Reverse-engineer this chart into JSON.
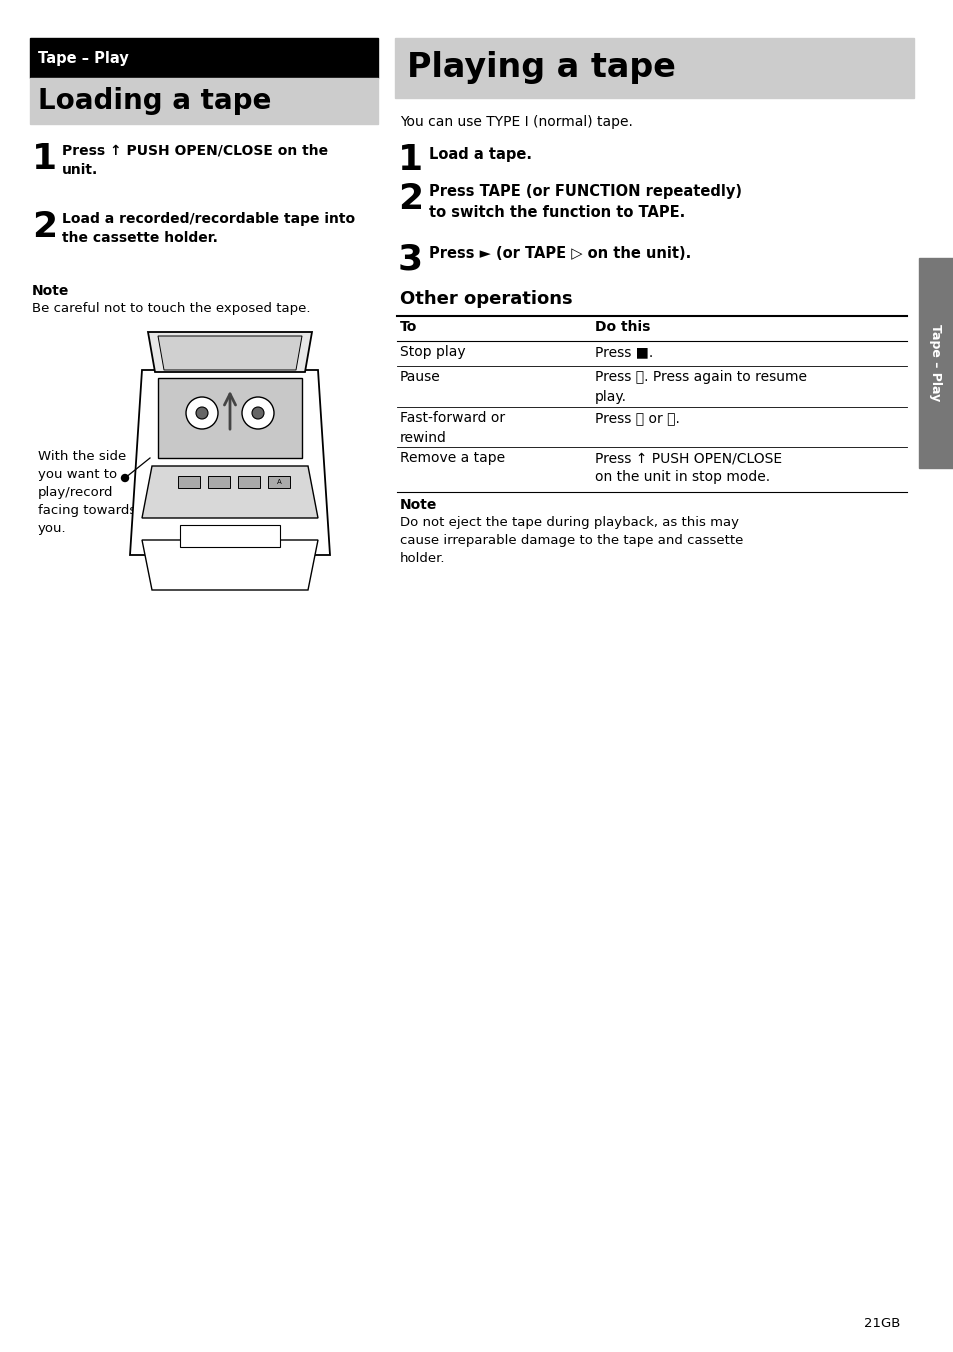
{
  "page_bg": "#ffffff",
  "black_header_text": "Tape – Play",
  "black_header_bg": "#000000",
  "black_header_text_color": "#ffffff",
  "left_section_title": "Loading a tape",
  "left_section_title_bg": "#cccccc",
  "right_section_title": "Playing a tape",
  "right_section_title_bg": "#cccccc",
  "page_number": "21",
  "sidebar_label": "Tape – Play",
  "sidebar_bg": "#777777"
}
